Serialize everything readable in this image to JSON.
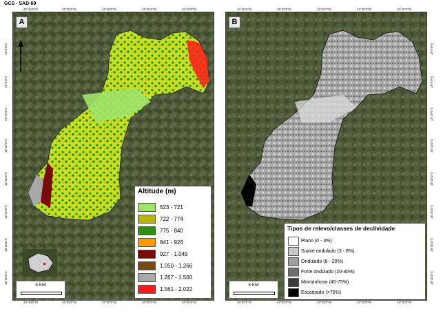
{
  "crs": "GCS - SAD-69",
  "panel_a": {
    "label": "A",
    "legend_title": "Altitude (m)",
    "classes": [
      {
        "range": "623 - 721",
        "color": "#9ee36a"
      },
      {
        "range": "722 - 774",
        "color": "#b8b400"
      },
      {
        "range": "775 - 840",
        "color": "#2e8c12"
      },
      {
        "range": "841 - 926",
        "color": "#ff9a00"
      },
      {
        "range": "927 - 1.049",
        "color": "#7a0a0a"
      },
      {
        "range": "1.050 - 1.266",
        "color": "#7a4a10"
      },
      {
        "range": "1.267 - 1.560",
        "color": "#a8a8a8"
      },
      {
        "range": "1.561 - 2.022",
        "color": "#ff1a1a"
      }
    ],
    "scale": "5 KM",
    "north": "N"
  },
  "panel_b": {
    "label": "B",
    "legend_title": "Tipos de relevo/classes de declividade",
    "classes": [
      {
        "range": "Plano (0 - 3%)",
        "color": "#ffffff"
      },
      {
        "range": "Suave ondulado (3 - 8%)",
        "color": "#c8c8c8"
      },
      {
        "range": "Ondulado (8 - 20%)",
        "color": "#a0a0a0"
      },
      {
        "range": "Forte ondulado (20-45%)",
        "color": "#6e6e6e"
      },
      {
        "range": "Montanhoso (45-75%)",
        "color": "#3c3c3c"
      },
      {
        "range": "Escarpado (>75%)",
        "color": "#000000"
      }
    ],
    "scale": "5 KM"
  },
  "ticks_top_a": [
    "43°40'0\"W",
    "43°35'0\"W",
    "43°30'0\"W",
    "43°25'0\"W",
    "43°20'0\"W"
  ],
  "ticks_top_b": [
    "43°35'0\"W",
    "43°30'0\"W",
    "43°25'0\"W",
    "43°20'0\"W",
    "43°15'0\"W"
  ],
  "ticks_side": [
    "18°0'0\"S",
    "18°5'0\"S",
    "18°10'0\"S",
    "18°15'0\"S",
    "18°20'0\"S",
    "18°25'0\"S",
    "18°30'0\"S",
    "18°35'0\"S"
  ]
}
